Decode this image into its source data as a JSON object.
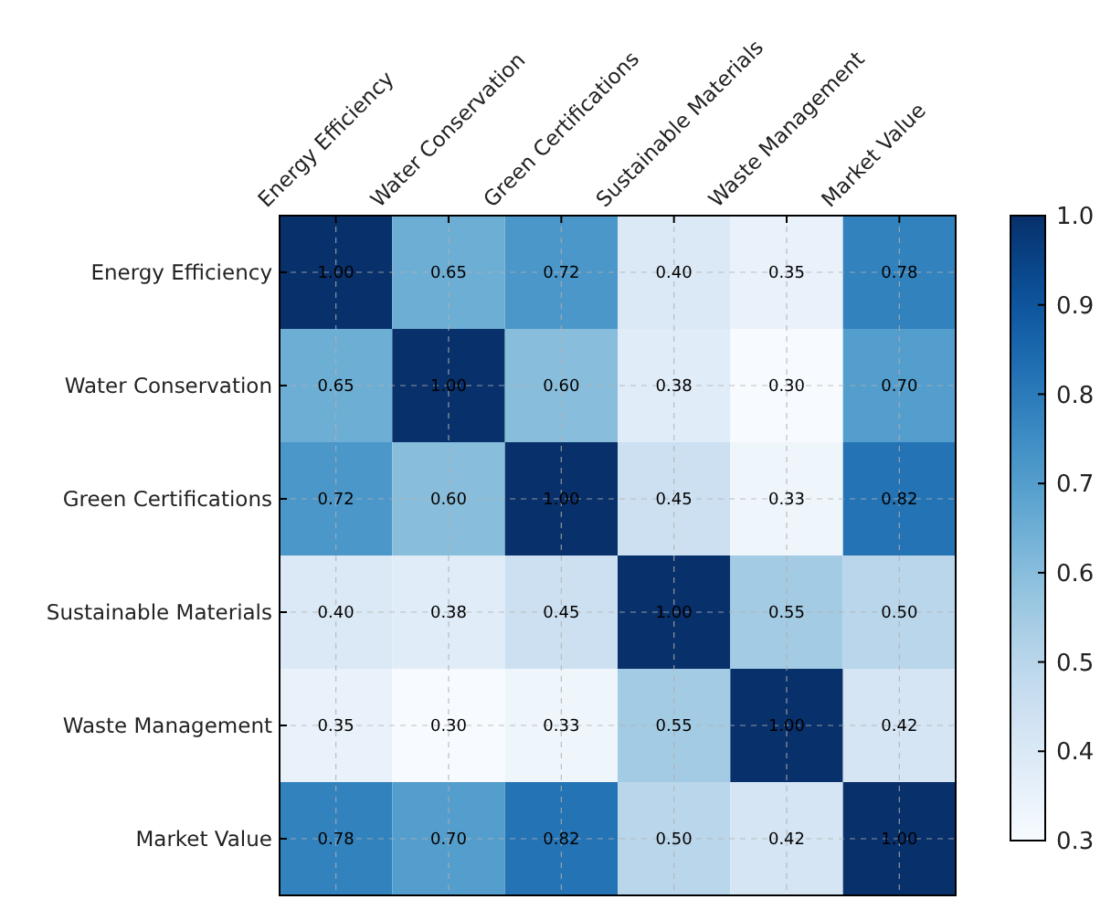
{
  "chart_data": {
    "type": "heatmap",
    "categories": [
      "Energy Efficiency",
      "Water Conservation",
      "Green Certifications",
      "Sustainable Materials",
      "Waste Management",
      "Market Value"
    ],
    "y_categories": [
      "Energy Efficiency",
      "Water Conservation",
      "Green Certifications",
      "Sustainable Materials",
      "Waste Management",
      "Market Value"
    ],
    "cells": [
      [
        1,
        0.65,
        0.72,
        0.4,
        0.35,
        0.78
      ],
      [
        0.65,
        1,
        0.6,
        0.38,
        0.3,
        0.7
      ],
      [
        0.72,
        0.6,
        1,
        0.45,
        0.33,
        0.82
      ],
      [
        0.4,
        0.38,
        0.45,
        1,
        0.55,
        0.5
      ],
      [
        0.35,
        0.3,
        0.33,
        0.55,
        1,
        0.42
      ],
      [
        0.78,
        0.7,
        0.82,
        0.5,
        0.42,
        1
      ]
    ],
    "cell_labels": [
      [
        "1.00",
        "0.65",
        "0.72",
        "0.40",
        "0.35",
        "0.78"
      ],
      [
        "0.65",
        "1.00",
        "0.60",
        "0.38",
        "0.30",
        "0.70"
      ],
      [
        "0.72",
        "0.60",
        "1.00",
        "0.45",
        "0.33",
        "0.82"
      ],
      [
        "0.40",
        "0.38",
        "0.45",
        "1.00",
        "0.55",
        "0.50"
      ],
      [
        "0.35",
        "0.30",
        "0.33",
        "0.55",
        "1.00",
        "0.42"
      ],
      [
        "0.78",
        "0.70",
        "0.82",
        "0.50",
        "0.42",
        "1.00"
      ]
    ],
    "clim": [
      0.3,
      1.0
    ],
    "cticks": [
      {
        "value": 0.3,
        "label": "0.3"
      },
      {
        "value": 0.4,
        "label": "0.4"
      },
      {
        "value": 0.5,
        "label": "0.5"
      },
      {
        "value": 0.6,
        "label": "0.6"
      },
      {
        "value": 0.7,
        "label": "0.7"
      },
      {
        "value": 0.8,
        "label": "0.8"
      },
      {
        "value": 0.9,
        "label": "0.9"
      },
      {
        "value": 1.0,
        "label": "1.0"
      }
    ],
    "grid": true
  }
}
